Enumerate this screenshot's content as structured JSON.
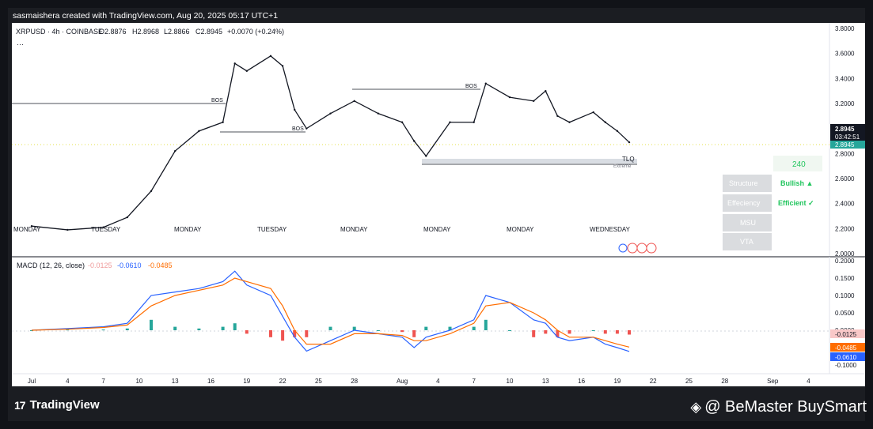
{
  "header": {
    "credit": "sasmaishera created with TradingView.com, Aug 20, 2025 05:17 UTC+1"
  },
  "symbol_line": {
    "symbol": "XRPUSD · 4h · COINBASE",
    "open": "O2.8876",
    "high": "H2.8968",
    "low": "L2.8866",
    "close": "C2.8945",
    "change": "+0.0070 (+0.24%)",
    "more": "···"
  },
  "price_axis_labels": [
    "3.8000",
    "3.6000",
    "3.4000",
    "3.2000",
    "2.8000",
    "2.6000",
    "2.4000",
    "2.2000",
    "2.0000"
  ],
  "last_price": {
    "value": "2.8945",
    "countdown": "03:42:51",
    "value2": "2.8945"
  },
  "annotations": {
    "bos_labels": [
      "BOS",
      "BOS",
      "BOS"
    ],
    "tlq": "TLQ",
    "extreme": "Extreme"
  },
  "weekday_labels": [
    "MONDAY",
    "TUESDAY",
    "WEDNESDAY"
  ],
  "indicator_panel": {
    "timeframe": "240",
    "rows": [
      {
        "label": "Structure",
        "value": "Bullish ▲"
      },
      {
        "label": "Effeciency",
        "value": "Efficient ✓"
      },
      {
        "label": "MSU",
        "value": ""
      },
      {
        "label": "VTA",
        "value": ""
      }
    ],
    "accent": "#22c55e"
  },
  "macd": {
    "title": "MACD (12, 26, close)",
    "hist_value": "-0.0125",
    "macd_value": "-0.0610",
    "signal_value": "-0.0485",
    "axis_labels": [
      "0.2000",
      "0.1500",
      "0.1000",
      "0.0500",
      "0.0000",
      "-0.1000"
    ],
    "colors": {
      "macd": "#2962ff",
      "signal": "#ff6d00",
      "hist_up": "#26a69a",
      "hist_down": "#ef5350"
    }
  },
  "time_axis_labels": [
    "Jul",
    "4",
    "7",
    "10",
    "13",
    "16",
    "19",
    "22",
    "25",
    "28",
    "Aug",
    "4",
    "7",
    "10",
    "13",
    "16",
    "19",
    "22",
    "25",
    "28",
    "Sep",
    "4"
  ],
  "footer": {
    "brand": "TradingView",
    "brand_mark": "17",
    "watermark": "@ BeMaster BuySmart"
  },
  "chart_data": {
    "type": "line",
    "title": "XRPUSD · 4h · COINBASE",
    "price_axis_range": [
      2.0,
      3.8
    ],
    "price_series": {
      "name": "XRPUSD",
      "dates": [
        "Jul 1",
        "Jul 4",
        "Jul 7",
        "Jul 9",
        "Jul 11",
        "Jul 13",
        "Jul 15",
        "Jul 17",
        "Jul 18",
        "Jul 19",
        "Jul 21",
        "Jul 22",
        "Jul 23",
        "Jul 24",
        "Jul 26",
        "Jul 28",
        "Jul 30",
        "Aug 1",
        "Aug 2",
        "Aug 3",
        "Aug 5",
        "Aug 7",
        "Aug 8",
        "Aug 10",
        "Aug 12",
        "Aug 13",
        "Aug 14",
        "Aug 15",
        "Aug 17",
        "Aug 18",
        "Aug 19",
        "Aug 20"
      ],
      "values": [
        2.22,
        2.19,
        2.21,
        2.29,
        2.5,
        2.82,
        2.98,
        3.05,
        3.52,
        3.46,
        3.58,
        3.5,
        3.15,
        3.0,
        3.12,
        3.22,
        3.12,
        3.05,
        2.9,
        2.78,
        3.05,
        3.05,
        3.36,
        3.25,
        3.22,
        3.3,
        3.1,
        3.05,
        3.13,
        3.05,
        2.98,
        2.89
      ]
    },
    "macd_axis_range": [
      -0.1,
      0.2
    ],
    "macd_series": [
      {
        "name": "MACD",
        "values": [
          0.0,
          0.005,
          0.01,
          0.02,
          0.1,
          0.11,
          0.12,
          0.14,
          0.17,
          0.13,
          0.1,
          0.04,
          -0.02,
          -0.06,
          -0.03,
          0.0,
          -0.01,
          -0.02,
          -0.05,
          -0.02,
          0.0,
          0.03,
          0.1,
          0.08,
          0.03,
          0.02,
          -0.02,
          -0.03,
          -0.02,
          -0.04,
          -0.05,
          -0.061
        ]
      },
      {
        "name": "Signal",
        "values": [
          0.0,
          0.003,
          0.008,
          0.015,
          0.07,
          0.1,
          0.115,
          0.13,
          0.15,
          0.14,
          0.12,
          0.07,
          0.0,
          -0.04,
          -0.04,
          -0.01,
          -0.01,
          -0.015,
          -0.03,
          -0.03,
          -0.01,
          0.02,
          0.07,
          0.08,
          0.05,
          0.03,
          0.0,
          -0.02,
          -0.02,
          -0.03,
          -0.04,
          -0.0485
        ]
      }
    ]
  }
}
